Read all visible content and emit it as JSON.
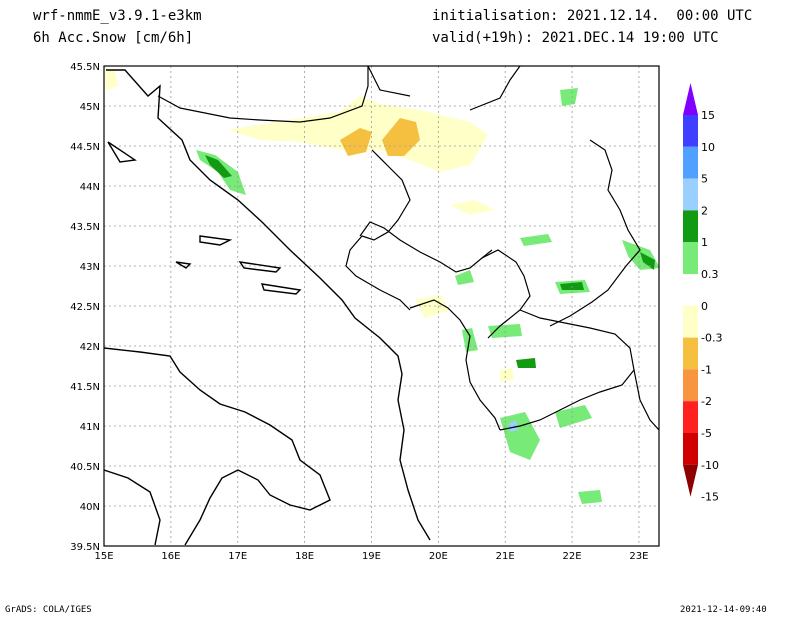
{
  "header": {
    "model": "wrf-nmmE_v3.9.1-e3km",
    "variable": "6h Acc.Snow [cm/6h]",
    "init": "initialisation: 2021.12.14.  00:00 UTC",
    "valid": "valid(+19h): 2021.DEC.14 19:00 UTC"
  },
  "footer": {
    "left": "GrADS: COLA/IGES",
    "right": "2021-12-14-09:40"
  },
  "map": {
    "lon_ticks": [
      "15E",
      "16E",
      "17E",
      "18E",
      "19E",
      "20E",
      "21E",
      "22E",
      "23E"
    ],
    "lat_ticks": [
      "45.5N",
      "45N",
      "44.5N",
      "44N",
      "43.5N",
      "43N",
      "42.5N",
      "42N",
      "41.5N",
      "41N",
      "40.5N",
      "40N",
      "39.5N"
    ],
    "lon_values": [
      15,
      16,
      17,
      18,
      19,
      20,
      21,
      22,
      23
    ],
    "lat_values": [
      45.5,
      45,
      44.5,
      44,
      43.5,
      43,
      42.5,
      42,
      41.5,
      41,
      40.5,
      40,
      39.5
    ],
    "lon_range": [
      15,
      23.3
    ],
    "lat_range": [
      39.5,
      45.5
    ],
    "grid": true
  },
  "legend": {
    "colors": [
      "#7f00ff",
      "#3f3fff",
      "#4fa0ff",
      "#99d0ff",
      "#129b12",
      "#77ea77",
      "#ffffff",
      "#ffffc8",
      "#f5c040",
      "#f89540",
      "#ff2020",
      "#d00000",
      "#8e0000"
    ],
    "labels": [
      "15",
      "10",
      "5",
      "2",
      "1",
      "0.3",
      "0",
      "-0.3",
      "-1",
      "-2",
      "-5",
      "-10",
      "-15"
    ]
  }
}
